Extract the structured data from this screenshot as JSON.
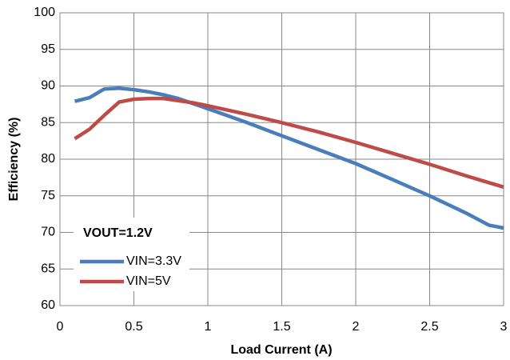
{
  "chart_data": {
    "type": "line",
    "xlabel": "Load Current (A)",
    "ylabel": "Efficiency (%)",
    "annotation": "VOUT=1.2V",
    "x": [
      0.1,
      0.2,
      0.3,
      0.4,
      0.5,
      0.6,
      0.7,
      0.8,
      0.9,
      1.0,
      1.25,
      1.5,
      1.75,
      2.0,
      2.25,
      2.5,
      2.75,
      2.9,
      3.0
    ],
    "series": [
      {
        "name": "VIN=3.3V",
        "color": "#4a7ebb",
        "values": [
          87.9,
          88.4,
          89.6,
          89.7,
          89.5,
          89.2,
          88.8,
          88.3,
          87.6,
          86.9,
          85.1,
          83.2,
          81.3,
          79.4,
          77.2,
          75.0,
          72.6,
          71.0,
          70.6
        ]
      },
      {
        "name": "VIN=5V",
        "color": "#be4b48",
        "values": [
          82.8,
          84.1,
          86.0,
          87.8,
          88.2,
          88.3,
          88.3,
          88.0,
          87.7,
          87.3,
          86.2,
          85.0,
          83.7,
          82.3,
          80.8,
          79.3,
          77.7,
          76.8,
          76.2
        ]
      }
    ],
    "xlim": [
      0,
      3
    ],
    "xticks": [
      0,
      0.5,
      1,
      1.5,
      2,
      2.5,
      3
    ],
    "ylim": [
      60,
      100
    ],
    "yticks": [
      60,
      65,
      70,
      75,
      80,
      85,
      90,
      95,
      100
    ],
    "grid": true
  }
}
